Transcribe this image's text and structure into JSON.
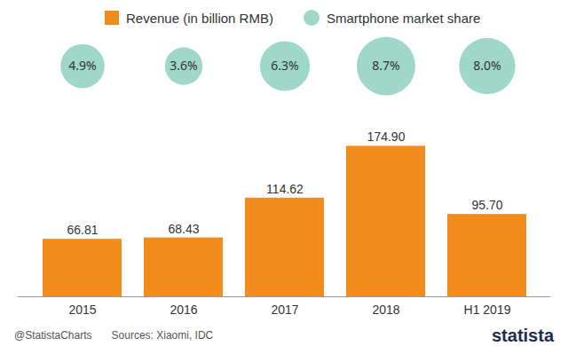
{
  "chart_data": {
    "type": "bar",
    "categories": [
      "2015",
      "2016",
      "2017",
      "2018",
      "H1 2019"
    ],
    "series": [
      {
        "name": "Revenue (in billion RMB)",
        "type": "bar",
        "color": "#f28c1c",
        "values": [
          66.81,
          68.43,
          114.62,
          174.9,
          95.7
        ],
        "value_labels": [
          "66.81",
          "68.43",
          "114.62",
          "174.90",
          "95.70"
        ]
      },
      {
        "name": "Smartphone market share",
        "type": "scatter",
        "marker": "circle",
        "color": "#9fd8c8",
        "values": [
          4.9,
          3.6,
          6.3,
          8.7,
          8.0
        ],
        "value_labels": [
          "4.9%",
          "3.6%",
          "6.3%",
          "8.7%",
          "8.0%"
        ]
      }
    ],
    "ylim": [
      0,
      200
    ],
    "data_labels": true,
    "tick_labels": "x",
    "legend": "top-left"
  },
  "footer": {
    "credit": "@StatistaCharts",
    "source": "Sources: Xiaomi, IDC",
    "brand": "statista"
  }
}
